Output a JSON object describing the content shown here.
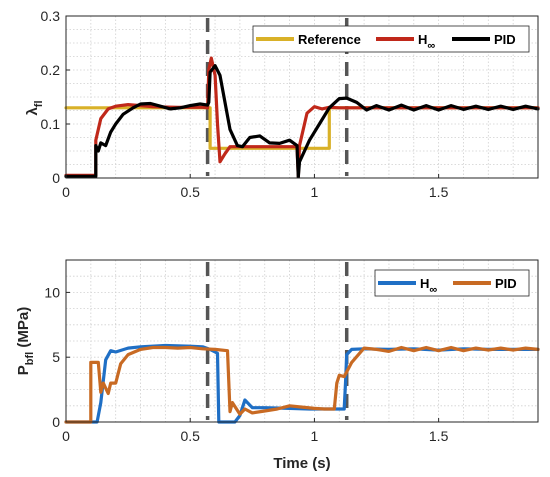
{
  "colors": {
    "reference": "#D9B128",
    "hinf_top": "#C0281A",
    "pid_top": "#000000",
    "hinf_bottom": "#1F6FC5",
    "pid_bottom": "#C86A23",
    "vline": "#555555"
  },
  "chart_data": [
    {
      "type": "line",
      "ylabel": "λ",
      "ylabel_sub": "fl",
      "xlim": [
        0,
        1.9
      ],
      "ylim": [
        0,
        0.3
      ],
      "x_ticks": [
        0,
        0.5,
        1,
        1.5
      ],
      "x_tick_labels": [
        "0",
        "0.5",
        "1",
        "1.5"
      ],
      "y_ticks": [
        0,
        0.1,
        0.2,
        0.3
      ],
      "y_tick_labels": [
        "0",
        "0.1",
        "0.2",
        "0.3"
      ],
      "grid": true,
      "legend": "top-right",
      "legend_labels": [
        "Reference",
        "H",
        "PID"
      ],
      "legend_sub": [
        "",
        "∞",
        ""
      ],
      "vlines": [
        0.57,
        1.13
      ],
      "series": [
        {
          "name": "Reference",
          "color_key": "reference",
          "x": [
            0,
            0.12,
            0.12,
            0.58,
            0.58,
            1.06,
            1.06,
            1.9
          ],
          "y": [
            0.13,
            0.13,
            0.13,
            0.13,
            0.055,
            0.055,
            0.13,
            0.13
          ]
        },
        {
          "name": "H∞",
          "color_key": "hinf_top",
          "x": [
            0,
            0.12,
            0.12,
            0.14,
            0.17,
            0.2,
            0.25,
            0.3,
            0.35,
            0.45,
            0.55,
            0.57,
            0.575,
            0.585,
            0.6,
            0.61,
            0.62,
            0.64,
            0.66,
            0.7,
            0.8,
            0.93,
            0.935,
            0.94,
            0.97,
            1.0,
            1.03,
            1.06,
            1.1,
            1.2,
            1.4,
            1.6,
            1.9
          ],
          "y": [
            0.005,
            0.005,
            0.07,
            0.11,
            0.128,
            0.133,
            0.136,
            0.134,
            0.132,
            0.131,
            0.131,
            0.13,
            0.2,
            0.222,
            0.19,
            0.1,
            0.03,
            0.045,
            0.058,
            0.058,
            0.058,
            0.058,
            0.002,
            0.06,
            0.12,
            0.132,
            0.128,
            0.131,
            0.13,
            0.13,
            0.13,
            0.13,
            0.13
          ]
        },
        {
          "name": "PID",
          "color_key": "pid_top",
          "x": [
            0,
            0.12,
            0.12,
            0.13,
            0.14,
            0.16,
            0.18,
            0.2,
            0.23,
            0.27,
            0.3,
            0.34,
            0.38,
            0.42,
            0.46,
            0.5,
            0.54,
            0.57,
            0.575,
            0.58,
            0.6,
            0.62,
            0.64,
            0.66,
            0.69,
            0.71,
            0.74,
            0.78,
            0.82,
            0.86,
            0.9,
            0.93,
            0.935,
            0.94,
            0.98,
            1.02,
            1.06,
            1.1,
            1.13,
            1.17,
            1.21,
            1.25,
            1.3,
            1.35,
            1.4,
            1.45,
            1.5,
            1.55,
            1.6,
            1.65,
            1.7,
            1.75,
            1.8,
            1.85,
            1.9
          ],
          "y": [
            0.003,
            0.003,
            0.06,
            0.05,
            0.065,
            0.06,
            0.085,
            0.1,
            0.118,
            0.13,
            0.137,
            0.138,
            0.133,
            0.128,
            0.13,
            0.134,
            0.137,
            0.135,
            0.14,
            0.196,
            0.208,
            0.19,
            0.14,
            0.09,
            0.06,
            0.058,
            0.075,
            0.078,
            0.065,
            0.064,
            0.07,
            0.06,
            0.002,
            0.03,
            0.07,
            0.1,
            0.13,
            0.147,
            0.148,
            0.14,
            0.126,
            0.134,
            0.126,
            0.135,
            0.126,
            0.134,
            0.126,
            0.134,
            0.127,
            0.133,
            0.127,
            0.133,
            0.127,
            0.133,
            0.128
          ]
        }
      ]
    },
    {
      "type": "line",
      "xlabel": "Time (s)",
      "ylabel": "P",
      "ylabel_sub": "bfl",
      "ylabel_suffix": " (MPa)",
      "xlim": [
        0,
        1.9
      ],
      "ylim": [
        0,
        12.5
      ],
      "x_ticks": [
        0,
        0.5,
        1,
        1.5
      ],
      "x_tick_labels": [
        "0",
        "0.5",
        "1",
        "1.5"
      ],
      "y_ticks": [
        0,
        5,
        10
      ],
      "y_tick_labels": [
        "0",
        "5",
        "10"
      ],
      "grid": true,
      "legend": "top-right",
      "legend_labels": [
        "H",
        "PID"
      ],
      "legend_sub": [
        "∞",
        ""
      ],
      "vlines": [
        0.57,
        1.13
      ],
      "series": [
        {
          "name": "H∞",
          "color_key": "hinf_bottom",
          "x": [
            0,
            0.12,
            0.125,
            0.14,
            0.16,
            0.18,
            0.2,
            0.25,
            0.3,
            0.4,
            0.5,
            0.55,
            0.58,
            0.6,
            0.61,
            0.615,
            0.65,
            0.68,
            0.7,
            0.72,
            0.75,
            0.8,
            0.9,
            0.98,
            1.0,
            1.04,
            1.08,
            1.1,
            1.12,
            1.125,
            1.13,
            1.15,
            1.2,
            1.3,
            1.4,
            1.5,
            1.6,
            1.7,
            1.8,
            1.9
          ],
          "y": [
            0,
            0,
            0,
            1.5,
            4.8,
            5.5,
            5.4,
            5.7,
            5.8,
            5.9,
            5.85,
            5.8,
            5.6,
            5.4,
            5.3,
            0,
            0,
            0,
            0.5,
            1.7,
            1.1,
            1.1,
            1.05,
            1.0,
            1.0,
            1.0,
            1.0,
            1.0,
            1.0,
            3.0,
            5.2,
            5.6,
            5.65,
            5.6,
            5.65,
            5.55,
            5.65,
            5.6,
            5.6,
            5.6
          ]
        },
        {
          "name": "PID",
          "color_key": "pid_bottom",
          "x": [
            0,
            0.1,
            0.1,
            0.13,
            0.14,
            0.15,
            0.17,
            0.18,
            0.2,
            0.22,
            0.25,
            0.3,
            0.35,
            0.4,
            0.45,
            0.5,
            0.55,
            0.6,
            0.65,
            0.66,
            0.67,
            0.7,
            0.72,
            0.75,
            0.8,
            0.85,
            0.9,
            0.95,
            1.0,
            1.04,
            1.08,
            1.09,
            1.1,
            1.12,
            1.15,
            1.2,
            1.25,
            1.3,
            1.35,
            1.4,
            1.45,
            1.5,
            1.55,
            1.6,
            1.65,
            1.7,
            1.75,
            1.8,
            1.85,
            1.9
          ],
          "y": [
            0,
            0,
            4.6,
            4.6,
            2.3,
            3.0,
            2.2,
            3.0,
            3.0,
            4.5,
            5.2,
            5.6,
            5.75,
            5.75,
            5.7,
            5.75,
            5.65,
            5.6,
            5.5,
            0.8,
            1.5,
            0.6,
            1.0,
            0.7,
            0.85,
            1.0,
            1.25,
            1.15,
            1.05,
            1.0,
            1.0,
            3.0,
            3.6,
            3.5,
            4.6,
            5.7,
            5.6,
            5.45,
            5.75,
            5.5,
            5.75,
            5.5,
            5.75,
            5.5,
            5.7,
            5.55,
            5.7,
            5.55,
            5.7,
            5.6
          ]
        }
      ]
    }
  ]
}
